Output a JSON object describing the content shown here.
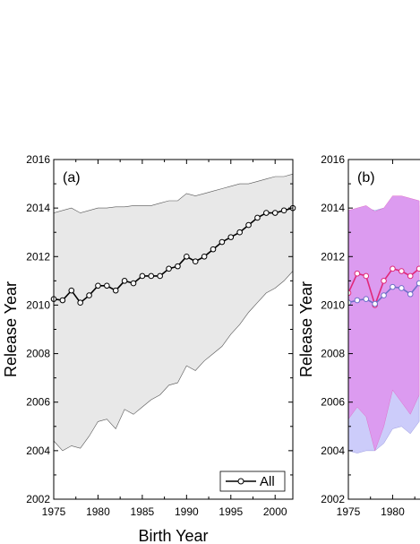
{
  "chart_data": [
    {
      "type": "line",
      "panel_label": "(a)",
      "xlabel": "Birth Year",
      "ylabel": "Release Year",
      "xlim": [
        1975,
        2002
      ],
      "ylim": [
        2002,
        2016
      ],
      "x_ticks": [
        "1975",
        "1980",
        "1985",
        "1990",
        "1995",
        "2000"
      ],
      "y_ticks": [
        "2002",
        "2004",
        "2006",
        "2008",
        "2010",
        "2012",
        "2014",
        "2016"
      ],
      "legend": {
        "position": "bottom-right",
        "entries": [
          "All"
        ]
      },
      "series": [
        {
          "name": "All",
          "color": "#000000",
          "marker": "open-circle",
          "x": [
            1975,
            1976,
            1977,
            1978,
            1979,
            1980,
            1981,
            1982,
            1983,
            1984,
            1985,
            1986,
            1987,
            1988,
            1989,
            1990,
            1991,
            1992,
            1993,
            1994,
            1995,
            1996,
            1997,
            1998,
            1999,
            2000,
            2001,
            2002
          ],
          "y": [
            2010.25,
            2010.2,
            2010.6,
            2010.1,
            2010.4,
            2010.8,
            2010.8,
            2010.6,
            2011.0,
            2010.9,
            2011.2,
            2011.2,
            2011.2,
            2011.5,
            2011.6,
            2012.0,
            2011.8,
            2012.0,
            2012.3,
            2012.6,
            2012.8,
            2013.0,
            2013.3,
            2013.6,
            2013.8,
            2013.8,
            2013.9,
            2014.0
          ]
        }
      ],
      "band": {
        "color": "#e8e8e8",
        "x": [
          1975,
          1976,
          1977,
          1978,
          1979,
          1980,
          1981,
          1982,
          1983,
          1984,
          1985,
          1986,
          1987,
          1988,
          1989,
          1990,
          1991,
          1992,
          1993,
          1994,
          1995,
          1996,
          1997,
          1998,
          1999,
          2000,
          2001,
          2002
        ],
        "upper": [
          2013.8,
          2013.9,
          2014.0,
          2013.8,
          2013.9,
          2014.0,
          2014.0,
          2014.05,
          2014.05,
          2014.1,
          2014.1,
          2014.1,
          2014.2,
          2014.3,
          2014.3,
          2014.6,
          2014.5,
          2014.6,
          2014.7,
          2014.8,
          2014.9,
          2015.0,
          2015.0,
          2015.1,
          2015.2,
          2015.3,
          2015.3,
          2015.4
        ],
        "lower": [
          2004.4,
          2004.0,
          2004.2,
          2004.1,
          2004.6,
          2005.2,
          2005.3,
          2004.9,
          2005.7,
          2005.5,
          2005.8,
          2006.1,
          2006.3,
          2006.7,
          2006.8,
          2007.5,
          2007.3,
          2007.7,
          2008.0,
          2008.3,
          2008.8,
          2009.2,
          2009.7,
          2010.1,
          2010.5,
          2010.7,
          2011.0,
          2011.4
        ]
      }
    },
    {
      "type": "line",
      "panel_label": "(b)",
      "xlabel": "",
      "ylabel": "Release Year",
      "xlim": [
        1975,
        2002
      ],
      "ylim": [
        2002,
        2016
      ],
      "x_ticks": [
        "1975",
        "1980"
      ],
      "y_ticks": [
        "2002",
        "2004",
        "2006",
        "2008",
        "2010",
        "2012",
        "2014",
        "2016"
      ],
      "series": [
        {
          "color": "#e0287a",
          "marker": "open-circle",
          "x": [
            1975,
            1976,
            1977,
            1978,
            1979,
            1980,
            1981,
            1982,
            1983
          ],
          "y": [
            2010.5,
            2011.3,
            2011.2,
            2010.0,
            2011.0,
            2011.5,
            2011.4,
            2011.2,
            2011.5
          ]
        },
        {
          "color": "#6f6fc8",
          "marker": "open-circle",
          "x": [
            1975,
            1976,
            1977,
            1978,
            1979,
            1980,
            1981,
            1982,
            1983
          ],
          "y": [
            2010.1,
            2010.2,
            2010.25,
            2010.05,
            2010.4,
            2010.75,
            2010.7,
            2010.45,
            2010.9
          ]
        }
      ],
      "bands": [
        {
          "color": "#ccccfa",
          "x": [
            1975,
            1976,
            1977,
            1978,
            1979,
            1980,
            1981,
            1982,
            1983
          ],
          "upper": [
            2013.9,
            2013.95,
            2014.0,
            2013.9,
            2014.0,
            2014.05,
            2014.05,
            2014.05,
            2014.1
          ],
          "lower": [
            2004.0,
            2003.9,
            2004.0,
            2004.0,
            2004.3,
            2004.9,
            2005.0,
            2004.7,
            2005.2
          ]
        },
        {
          "color": "#dc9bf0",
          "x": [
            1975,
            1976,
            1977,
            1978,
            1979,
            1980,
            1981,
            1982,
            1983
          ],
          "upper": [
            2013.9,
            2014.0,
            2014.1,
            2013.85,
            2014.0,
            2014.5,
            2014.5,
            2014.4,
            2014.3
          ],
          "lower": [
            2005.3,
            2005.8,
            2005.4,
            2004.0,
            2005.0,
            2006.5,
            2006.0,
            2005.5,
            2006.3
          ]
        }
      ]
    }
  ]
}
